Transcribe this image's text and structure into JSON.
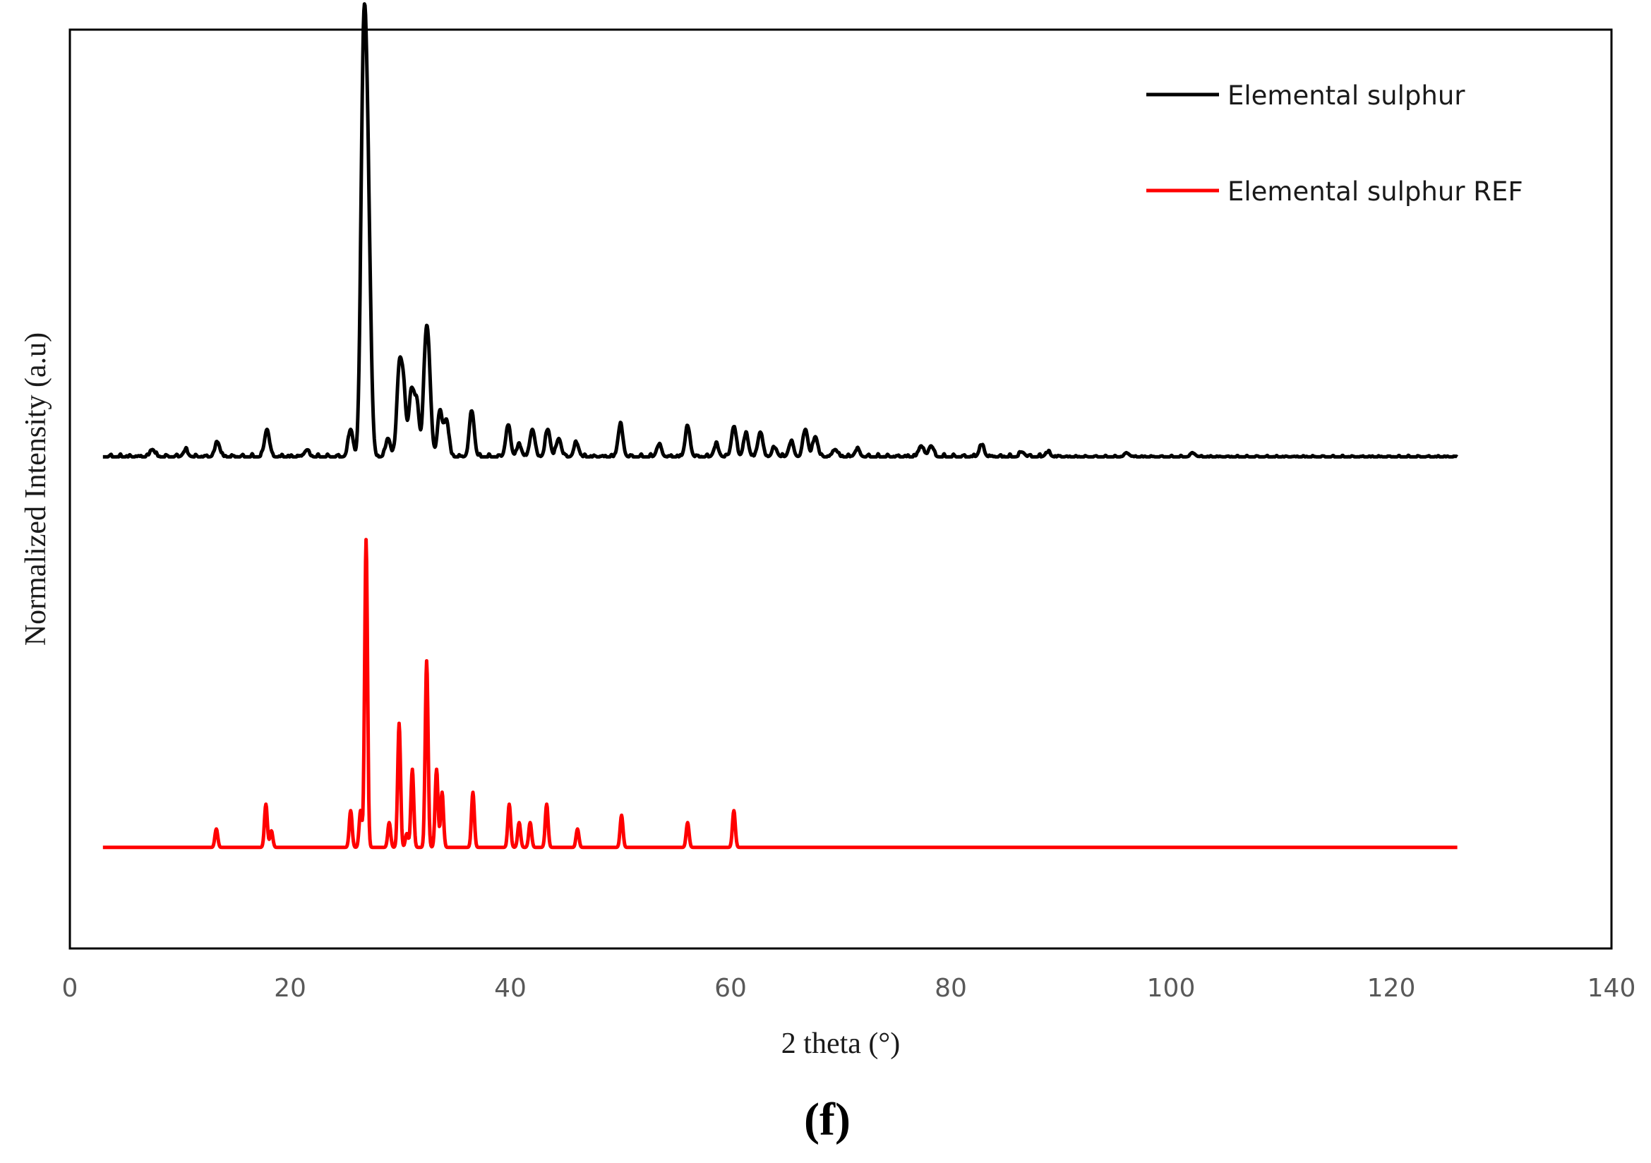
{
  "chart_data": {
    "type": "line",
    "title": "",
    "xlabel": "2 theta (°)",
    "ylabel": "Normalized Intensity (a.u)",
    "xlim": [
      0,
      140
    ],
    "ylim": [
      0,
      1
    ],
    "x_ticks": [
      0,
      20,
      40,
      60,
      80,
      100,
      120,
      140
    ],
    "y_ticks_shown": false,
    "grid": false,
    "legend_position": "top-right",
    "panel_label": "(f)",
    "series": [
      {
        "name": "Elemental sulphur",
        "color": "#000000",
        "style": "measured pattern",
        "baseline": 0.535,
        "x_range": [
          3,
          126
        ],
        "peaks": [
          {
            "x": 7.5,
            "h": 0.008
          },
          {
            "x": 10.5,
            "h": 0.007
          },
          {
            "x": 13.4,
            "h": 0.016
          },
          {
            "x": 17.9,
            "h": 0.03
          },
          {
            "x": 21.5,
            "h": 0.007
          },
          {
            "x": 25.5,
            "h": 0.03
          },
          {
            "x": 26.6,
            "h": 0.32
          },
          {
            "x": 26.9,
            "h": 0.28
          },
          {
            "x": 27.2,
            "h": 0.14
          },
          {
            "x": 28.9,
            "h": 0.02
          },
          {
            "x": 29.9,
            "h": 0.09
          },
          {
            "x": 30.3,
            "h": 0.07
          },
          {
            "x": 31.0,
            "h": 0.07
          },
          {
            "x": 31.5,
            "h": 0.06
          },
          {
            "x": 32.3,
            "h": 0.1
          },
          {
            "x": 32.6,
            "h": 0.08
          },
          {
            "x": 33.6,
            "h": 0.05
          },
          {
            "x": 34.2,
            "h": 0.04
          },
          {
            "x": 36.5,
            "h": 0.05
          },
          {
            "x": 39.8,
            "h": 0.034
          },
          {
            "x": 40.8,
            "h": 0.013
          },
          {
            "x": 42.0,
            "h": 0.03
          },
          {
            "x": 43.4,
            "h": 0.03
          },
          {
            "x": 44.4,
            "h": 0.02
          },
          {
            "x": 46.0,
            "h": 0.015
          },
          {
            "x": 50.0,
            "h": 0.035
          },
          {
            "x": 53.5,
            "h": 0.013
          },
          {
            "x": 56.1,
            "h": 0.033
          },
          {
            "x": 58.7,
            "h": 0.013
          },
          {
            "x": 60.3,
            "h": 0.033
          },
          {
            "x": 61.4,
            "h": 0.025
          },
          {
            "x": 62.7,
            "h": 0.027
          },
          {
            "x": 64.0,
            "h": 0.01
          },
          {
            "x": 65.5,
            "h": 0.016
          },
          {
            "x": 66.8,
            "h": 0.03
          },
          {
            "x": 67.7,
            "h": 0.022
          },
          {
            "x": 69.5,
            "h": 0.008
          },
          {
            "x": 71.5,
            "h": 0.008
          },
          {
            "x": 77.3,
            "h": 0.012
          },
          {
            "x": 78.2,
            "h": 0.012
          },
          {
            "x": 82.8,
            "h": 0.013
          },
          {
            "x": 86.5,
            "h": 0.005
          },
          {
            "x": 88.8,
            "h": 0.005
          },
          {
            "x": 96.0,
            "h": 0.004
          },
          {
            "x": 102.0,
            "h": 0.004
          }
        ]
      },
      {
        "name": "Elemental sulphur REF",
        "color": "#ff0000",
        "style": "reference stick pattern",
        "baseline": 0.11,
        "x_range": [
          3,
          126
        ],
        "peaks": [
          {
            "x": 13.3,
            "h": 0.02
          },
          {
            "x": 17.8,
            "h": 0.047
          },
          {
            "x": 18.3,
            "h": 0.018
          },
          {
            "x": 25.5,
            "h": 0.04
          },
          {
            "x": 26.4,
            "h": 0.04
          },
          {
            "x": 26.9,
            "h": 0.335
          },
          {
            "x": 29.0,
            "h": 0.027
          },
          {
            "x": 29.9,
            "h": 0.135
          },
          {
            "x": 30.6,
            "h": 0.015
          },
          {
            "x": 31.1,
            "h": 0.085
          },
          {
            "x": 32.4,
            "h": 0.203
          },
          {
            "x": 33.3,
            "h": 0.085
          },
          {
            "x": 33.8,
            "h": 0.06
          },
          {
            "x": 36.6,
            "h": 0.06
          },
          {
            "x": 39.9,
            "h": 0.047
          },
          {
            "x": 40.8,
            "h": 0.027
          },
          {
            "x": 41.8,
            "h": 0.027
          },
          {
            "x": 43.3,
            "h": 0.047
          },
          {
            "x": 46.1,
            "h": 0.02
          },
          {
            "x": 50.1,
            "h": 0.035
          },
          {
            "x": 56.1,
            "h": 0.027
          },
          {
            "x": 60.3,
            "h": 0.04
          }
        ]
      }
    ]
  }
}
